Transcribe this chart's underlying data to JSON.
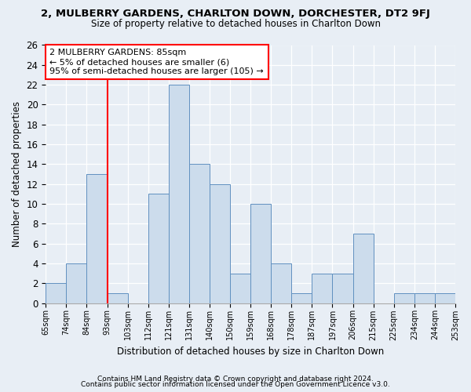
{
  "title": "2, MULBERRY GARDENS, CHARLTON DOWN, DORCHESTER, DT2 9FJ",
  "subtitle": "Size of property relative to detached houses in Charlton Down",
  "xlabel": "Distribution of detached houses by size in Charlton Down",
  "ylabel": "Number of detached properties",
  "bin_labels": [
    "65sqm",
    "74sqm",
    "84sqm",
    "93sqm",
    "103sqm",
    "112sqm",
    "121sqm",
    "131sqm",
    "140sqm",
    "150sqm",
    "159sqm",
    "168sqm",
    "178sqm",
    "187sqm",
    "197sqm",
    "206sqm",
    "215sqm",
    "225sqm",
    "234sqm",
    "244sqm",
    "253sqm"
  ],
  "values": [
    2,
    4,
    13,
    1,
    0,
    11,
    22,
    14,
    12,
    3,
    10,
    4,
    1,
    3,
    3,
    7,
    0,
    1,
    1,
    1
  ],
  "bar_color": "#ccdcec",
  "bar_edge_color": "#6090c0",
  "highlight_line_idx": 2,
  "highlight_color": "red",
  "annotation_text": "2 MULBERRY GARDENS: 85sqm\n← 5% of detached houses are smaller (6)\n95% of semi-detached houses are larger (105) →",
  "ylim": [
    0,
    26
  ],
  "yticks": [
    0,
    2,
    4,
    6,
    8,
    10,
    12,
    14,
    16,
    18,
    20,
    22,
    24,
    26
  ],
  "footer1": "Contains HM Land Registry data © Crown copyright and database right 2024.",
  "footer2": "Contains public sector information licensed under the Open Government Licence v3.0.",
  "background_color": "#e8eef5",
  "plot_background_color": "#e8eef5"
}
